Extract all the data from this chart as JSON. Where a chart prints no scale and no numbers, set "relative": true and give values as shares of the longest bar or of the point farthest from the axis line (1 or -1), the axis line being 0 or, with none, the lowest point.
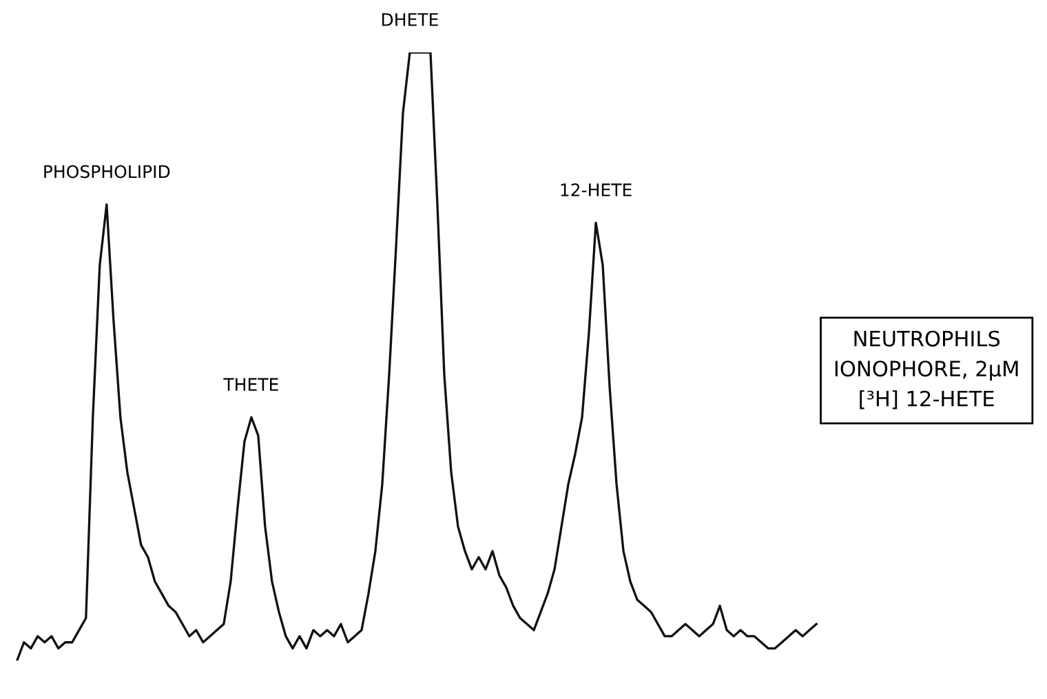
{
  "chart_data": {
    "type": "line",
    "relative": true,
    "categories": [
      null,
      null,
      null,
      null,
      null,
      null,
      null,
      null,
      null,
      null,
      null,
      null,
      null,
      null,
      null,
      null,
      null,
      null,
      null,
      null,
      null,
      null,
      null,
      null,
      null,
      null,
      null,
      null,
      null,
      null,
      null,
      null,
      null,
      null,
      null,
      null,
      null,
      null,
      null,
      null,
      null,
      null,
      null,
      null,
      null,
      null,
      null,
      null,
      null,
      null,
      null,
      null,
      null,
      null,
      null,
      null,
      null,
      null,
      null,
      null,
      null,
      null,
      null,
      null,
      null,
      null,
      null,
      null,
      null,
      null,
      null,
      null,
      null,
      null,
      null,
      null,
      null,
      null,
      null,
      null,
      null,
      null,
      null,
      null,
      null,
      null,
      null,
      null,
      null,
      null,
      null,
      null,
      null,
      null,
      null,
      null,
      null,
      null,
      null,
      null,
      null,
      null,
      null,
      null,
      null,
      null,
      null,
      null,
      null,
      null,
      null,
      null,
      null,
      null,
      null,
      null,
      null
    ],
    "series": [
      {
        "color": "#111111",
        "values": [
          0,
          0.03,
          0.02,
          0.04,
          0.03,
          0.04,
          0.02,
          0.03,
          0.03,
          0.05,
          0.07,
          0.4,
          0.65,
          0.75,
          0.56,
          0.4,
          0.31,
          0.25,
          0.19,
          0.17,
          0.13,
          0.11,
          0.09,
          0.08,
          0.06,
          0.04,
          0.05,
          0.03,
          0.04,
          0.05,
          0.06,
          0.13,
          0.25,
          0.36,
          0.4,
          0.37,
          0.22,
          0.13,
          0.08,
          0.04,
          0.02,
          0.04,
          0.02,
          0.05,
          0.04,
          0.05,
          0.04,
          0.06,
          0.03,
          0.04,
          0.05,
          0.11,
          0.18,
          0.29,
          0.47,
          0.68,
          0.9,
          1,
          1,
          1,
          1,
          0.75,
          0.47,
          0.31,
          0.22,
          0.18,
          0.15,
          0.17,
          0.15,
          0.18,
          0.14,
          0.12,
          0.09,
          0.07,
          0.06,
          0.05,
          0.08,
          0.11,
          0.15,
          0.22,
          0.29,
          0.34,
          0.4,
          0.54,
          0.72,
          0.65,
          0.45,
          0.29,
          0.18,
          0.13,
          0.1,
          0.09,
          0.08,
          0.06,
          0.04,
          0.04,
          0.05,
          0.06,
          0.05,
          0.04,
          0.05,
          0.06,
          0.09,
          0.05,
          0.04,
          0.05,
          0.04,
          0.04,
          0.03,
          0.02,
          0.02,
          0.03,
          0.04,
          0.05,
          0.04,
          0.05,
          0.06
        ]
      }
    ],
    "annotations": [
      "PHOSPHOLIPID",
      "THETE",
      "DHETE",
      "12-HETE",
      "NEUTROPHILS\nIONOPHORE, 2μM\n[³H] 12-HETE"
    ],
    "marker": "none",
    "line_style": "solid",
    "tick_labels": false
  }
}
